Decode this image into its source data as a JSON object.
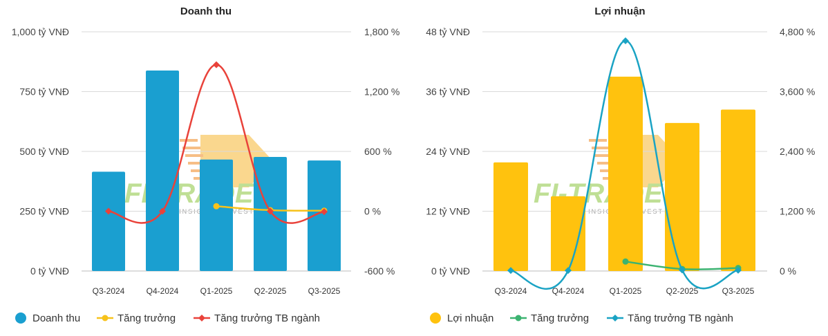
{
  "watermark": {
    "brand": "FI-TRADE",
    "tagline": "DATA - INSIGHT - INVEST"
  },
  "chart_data": [
    {
      "type": "bar+line",
      "title": "Doanh thu",
      "categories": [
        "Q3-2024",
        "Q4-2024",
        "Q1-2025",
        "Q2-2025",
        "Q3-2025"
      ],
      "left_axis": {
        "min": 0,
        "max": 1000,
        "ticks": [
          0,
          250,
          500,
          750,
          1000
        ],
        "tick_labels": [
          "0 tỷ VNĐ",
          "250 tỷ VNĐ",
          "500 tỷ VNĐ",
          "750 tỷ VNĐ",
          "1,000 tỷ VNĐ"
        ]
      },
      "right_axis": {
        "min": -600,
        "max": 1800,
        "ticks": [
          -600,
          0,
          600,
          1200,
          1800
        ],
        "tick_labels": [
          "-600 %",
          "0 %",
          "600 %",
          "1,200 %",
          "1,800 %"
        ]
      },
      "bar_series": {
        "name": "Doanh thu",
        "color": "#1a9fd0",
        "values": [
          415,
          838,
          466,
          477,
          462
        ]
      },
      "line_series": [
        {
          "name": "Tăng trưởng",
          "color": "#f7c21b",
          "marker": "circle",
          "values": [
            null,
            null,
            50,
            10,
            5
          ]
        },
        {
          "name": "Tăng trưởng TB ngành",
          "color": "#e9423a",
          "marker": "diamond",
          "values": [
            0,
            0,
            1470,
            0,
            -5
          ]
        }
      ],
      "legend": [
        "Doanh thu",
        "Tăng trưởng",
        "Tăng trưởng TB ngành"
      ]
    },
    {
      "type": "bar+line",
      "title": "Lợi nhuận",
      "categories": [
        "Q3-2024",
        "Q4-2024",
        "Q1-2025",
        "Q2-2025",
        "Q3-2025"
      ],
      "left_axis": {
        "min": 0,
        "max": 48,
        "ticks": [
          0,
          12,
          24,
          36,
          48
        ],
        "tick_labels": [
          "0 tỷ VNĐ",
          "12 tỷ VNĐ",
          "24 tỷ VNĐ",
          "36 tỷ VNĐ",
          "48 tỷ VNĐ"
        ]
      },
      "right_axis": {
        "min": 0,
        "max": 4800,
        "ticks": [
          0,
          1200,
          2400,
          3600,
          4800
        ],
        "tick_labels": [
          "0 %",
          "1,200 %",
          "2,400 %",
          "3,600 %",
          "4,800 %"
        ]
      },
      "bar_series": {
        "name": "Lợi nhuận",
        "color": "#ffc20e",
        "values": [
          21.8,
          15,
          39,
          29.7,
          32.4
        ]
      },
      "line_series": [
        {
          "name": "Tăng trưởng",
          "color": "#3cb371",
          "marker": "circle",
          "values": [
            null,
            null,
            190,
            40,
            60
          ]
        },
        {
          "name": "Tăng trưởng TB ngành",
          "color": "#1aa3c4",
          "marker": "diamond",
          "values": [
            10,
            10,
            4620,
            20,
            15
          ]
        }
      ],
      "legend": [
        "Lợi nhuận",
        "Tăng trưởng",
        "Tăng trưởng TB ngành"
      ]
    }
  ]
}
